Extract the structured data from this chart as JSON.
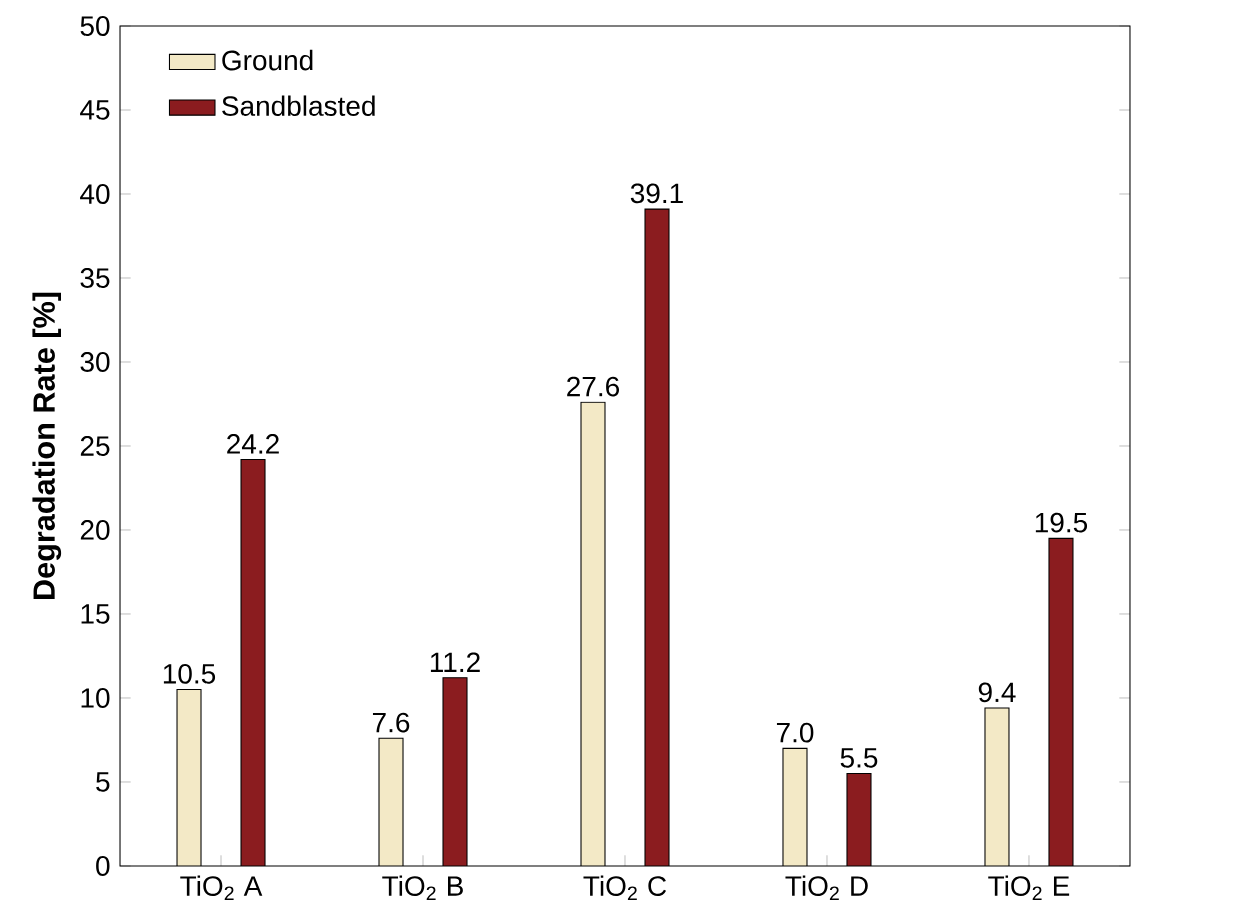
{
  "chart_data": {
    "type": "bar",
    "ylabel": "Degradation Rate [%]",
    "categories": [
      "TiO$_{2}$ A",
      "TiO$_{2}$ B",
      "TiO$_{2}$ C",
      "TiO$_{2}$ D",
      "TiO$_{2}$ E"
    ],
    "series": [
      {
        "name": "Ground",
        "color": "#f3e9c6",
        "values": [
          10.5,
          7.6,
          27.6,
          7.0,
          9.4
        ],
        "value_labels": [
          "10.5",
          "7.6",
          "27.6",
          "7.0",
          "9.4"
        ]
      },
      {
        "name": "Sandblasted",
        "color": "#8b1c1f",
        "values": [
          24.2,
          11.2,
          39.1,
          5.5,
          19.5
        ],
        "value_labels": [
          "24.2",
          "11.2",
          "39.1",
          "5.5",
          "19.5"
        ]
      }
    ],
    "ylim": [
      0,
      50
    ],
    "yticks": [
      0,
      5,
      10,
      15,
      20,
      25,
      30,
      35,
      40,
      45,
      50
    ],
    "legend": "top left",
    "grid": false
  }
}
